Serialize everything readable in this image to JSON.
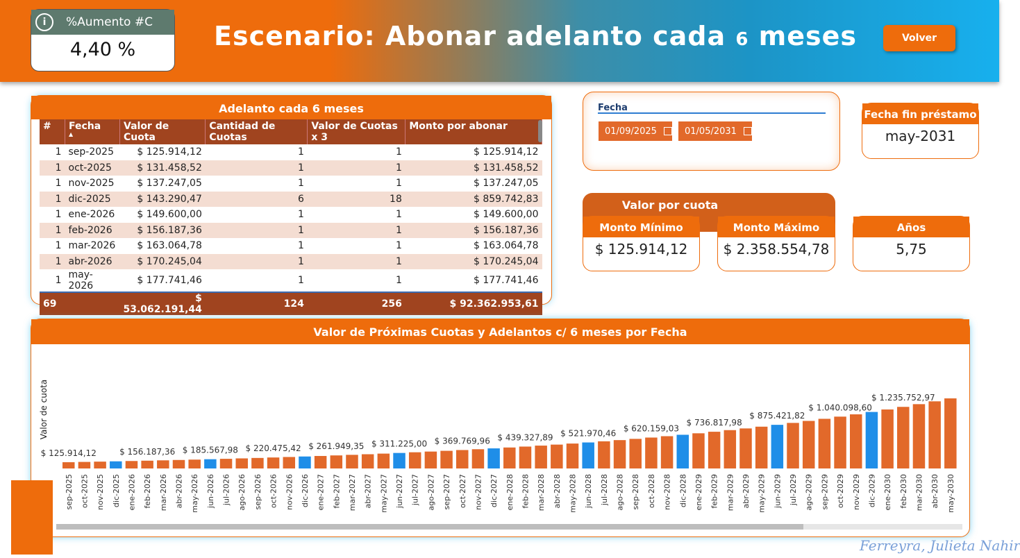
{
  "header": {
    "kpi_label": "%Aumento #C",
    "kpi_value": "4,40 %",
    "title_part1": "Escenario: Abonar adelanto cada",
    "title_num": "6",
    "title_part2": "meses",
    "volver_label": "Volver"
  },
  "table": {
    "title": "Adelanto cada 6 meses",
    "columns": [
      "#",
      "Fecha",
      "Valor de Cuota",
      "Cantidad de Cuotas",
      "Valor de Cuotas x 3",
      "Monto por abonar"
    ],
    "rows": [
      [
        "1",
        "sep-2025",
        "$ 125.914,12",
        "1",
        "1",
        "$ 125.914,12"
      ],
      [
        "1",
        "oct-2025",
        "$ 131.458,52",
        "1",
        "1",
        "$ 131.458,52"
      ],
      [
        "1",
        "nov-2025",
        "$ 137.247,05",
        "1",
        "1",
        "$ 137.247,05"
      ],
      [
        "1",
        "dic-2025",
        "$ 143.290,47",
        "6",
        "18",
        "$ 859.742,83"
      ],
      [
        "1",
        "ene-2026",
        "$ 149.600,00",
        "1",
        "1",
        "$ 149.600,00"
      ],
      [
        "1",
        "feb-2026",
        "$ 156.187,36",
        "1",
        "1",
        "$ 156.187,36"
      ],
      [
        "1",
        "mar-2026",
        "$ 163.064,78",
        "1",
        "1",
        "$ 163.064,78"
      ],
      [
        "1",
        "abr-2026",
        "$ 170.245,04",
        "1",
        "1",
        "$ 170.245,04"
      ],
      [
        "1",
        "may-2026",
        "$ 177.741,46",
        "1",
        "1",
        "$ 177.741,46"
      ]
    ],
    "totals": [
      "69",
      "",
      "$ 53.062.191,44",
      "124",
      "256",
      "$ 92.362.953,61"
    ]
  },
  "fecha": {
    "label": "Fecha",
    "start": "01/09/2025",
    "end": "01/05/2031"
  },
  "fin_prestamo": {
    "label": "Fecha fin préstamo",
    "value": "may-2031"
  },
  "valor_cuota": {
    "title": "Valor por cuota"
  },
  "monto_minimo": {
    "label": "Monto Mínimo",
    "value": "$ 125.914,12"
  },
  "monto_maximo": {
    "label": "Monto Máximo",
    "value": "$ 2.358.554,78"
  },
  "anios": {
    "label": "Años",
    "value": "5,75"
  },
  "footer": {
    "author": "Ferreyra, Julieta Nahir"
  },
  "colors": {
    "orange": "#ee6c0c",
    "blue": "#1f8ee8",
    "bar_orange": "#e2692a",
    "dark_red": "#a0441f"
  },
  "chart_data": {
    "type": "bar",
    "title": "Valor de Próximas Cuotas y Adelantos c/ 6 meses por Fecha",
    "ylabel": "Valor de cuota",
    "xlabel": "",
    "categories": [
      "sep-2025",
      "oct-2025",
      "nov-2025",
      "dic-2025",
      "ene-2026",
      "feb-2026",
      "mar-2026",
      "abr-2026",
      "may-2026",
      "jun-2026",
      "jul-2026",
      "ago-2026",
      "sep-2026",
      "oct-2026",
      "nov-2026",
      "dic-2026",
      "ene-2027",
      "feb-2027",
      "mar-2027",
      "abr-2027",
      "may-2027",
      "jun-2027",
      "jul-2027",
      "ago-2027",
      "sep-2027",
      "oct-2027",
      "nov-2027",
      "dic-2027",
      "ene-2028",
      "feb-2028",
      "mar-2028",
      "abr-2028",
      "may-2028",
      "jun-2028",
      "jul-2028",
      "ago-2028",
      "sep-2028",
      "oct-2028",
      "nov-2028",
      "dic-2028",
      "ene-2029",
      "feb-2029",
      "mar-2029",
      "abr-2029",
      "may-2029",
      "jun-2029",
      "jul-2029",
      "ago-2029",
      "sep-2029",
      "oct-2029",
      "nov-2029",
      "dic-2029",
      "ene-2030",
      "feb-2030",
      "mar-2030",
      "abr-2030",
      "may-2030"
    ],
    "values": [
      125914.12,
      131458.52,
      137247.05,
      143290.47,
      149600,
      156187.36,
      163064.78,
      170245.04,
      177741.46,
      185567.98,
      193738.6,
      202268.9,
      211174.6,
      220475.42,
      230170,
      240304,
      250884,
      261949.35,
      273480,
      285520,
      298090,
      311225,
      324930,
      339230,
      354160,
      369769.96,
      386050,
      403050,
      420790,
      439327.89,
      458670,
      478860,
      499940,
      521970.46,
      544950,
      568940,
      594000,
      620159.03,
      647460,
      675960,
      705720,
      736817.98,
      769270,
      803140,
      838490,
      875421.82,
      913960,
      954200,
      996210,
      1040098.6,
      1085890,
      1133700,
      1183610,
      1235752.97,
      1290160,
      1346960,
      1406260
    ],
    "highlight": [
      "dic-2025",
      "jun-2026",
      "dic-2026",
      "jun-2027",
      "dic-2027",
      "jun-2028",
      "dic-2028",
      "jun-2029",
      "dic-2029"
    ],
    "data_labels": [
      {
        "index": 0,
        "text": "$ 125.914,12"
      },
      {
        "index": 5,
        "text": "$ 156.187,36"
      },
      {
        "index": 9,
        "text": "$ 185.567,98"
      },
      {
        "index": 13,
        "text": "$ 220.475,42"
      },
      {
        "index": 17,
        "text": "$ 261.949,35"
      },
      {
        "index": 21,
        "text": "$ 311.225,00"
      },
      {
        "index": 25,
        "text": "$ 369.769,96"
      },
      {
        "index": 29,
        "text": "$ 439.327,89"
      },
      {
        "index": 33,
        "text": "$ 521.970,46"
      },
      {
        "index": 37,
        "text": "$ 620.159,03"
      },
      {
        "index": 41,
        "text": "$ 736.817,98"
      },
      {
        "index": 45,
        "text": "$ 875.421,82"
      },
      {
        "index": 49,
        "text": "$ 1.040.098,60"
      },
      {
        "index": 53,
        "text": "$ 1.235.752,97"
      }
    ],
    "ylim": [
      0,
      1450000
    ],
    "grid": false
  }
}
